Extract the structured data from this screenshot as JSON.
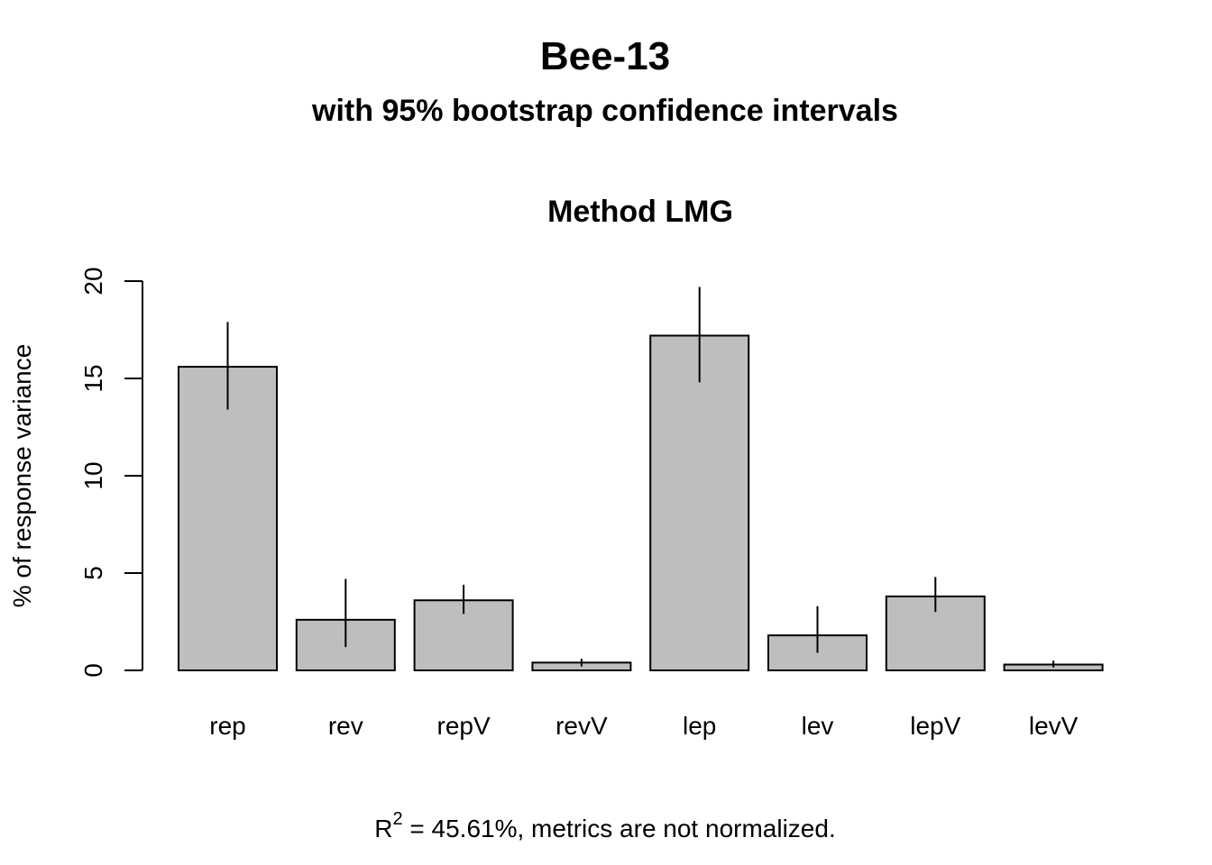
{
  "chart_data": {
    "type": "bar",
    "title": "Bee-13",
    "subtitle": "with 95% bootstrap confidence intervals",
    "panel_title": "Method LMG",
    "xlabel": "",
    "ylabel": "% of response variance",
    "ylim": [
      0,
      20
    ],
    "yticks": [
      "0",
      "5",
      "10",
      "15",
      "20"
    ],
    "categories": [
      "rep",
      "rev",
      "repV",
      "revV",
      "lep",
      "lev",
      "lepV",
      "levV"
    ],
    "values": [
      15.6,
      2.6,
      3.6,
      0.4,
      17.2,
      1.8,
      3.8,
      0.3
    ],
    "ci_lower": [
      13.4,
      1.2,
      2.9,
      0.2,
      14.8,
      0.9,
      3.0,
      0.15
    ],
    "ci_upper": [
      17.9,
      4.7,
      4.4,
      0.6,
      19.7,
      3.3,
      4.8,
      0.5
    ],
    "bar_color": "#bebebe",
    "grid": false,
    "legend": "none",
    "footer": {
      "r_symbol": "R",
      "r_superscript": "2",
      "text": " = 45.61%, metrics are not normalized."
    }
  }
}
